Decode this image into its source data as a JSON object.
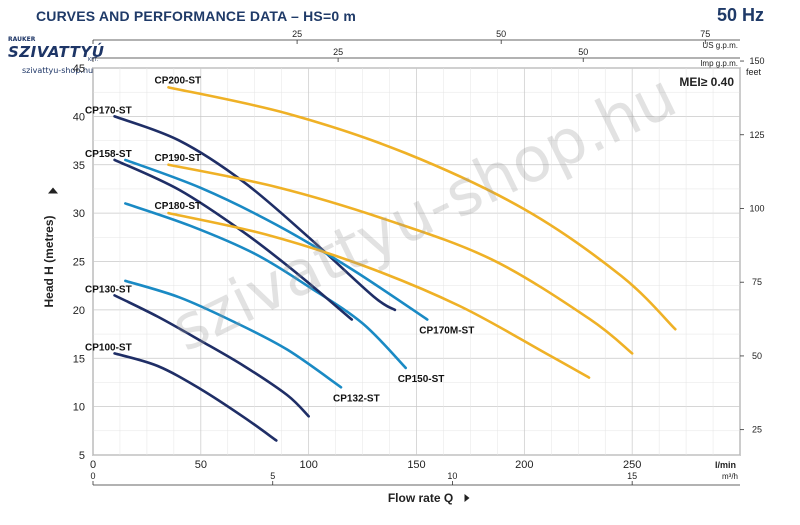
{
  "header": {
    "title": "CURVES AND PERFORMANCE DATA  –  HS=0 m",
    "frequency": "50 Hz"
  },
  "logo": {
    "top_text": "RAUKER",
    "brand": "SZIVATTYÚ",
    "suffix": "KFT.",
    "site": "szivattyu-shop.hu"
  },
  "watermark": "szivattyu-shop.hu",
  "chart_data": {
    "type": "line",
    "title": "CURVES AND PERFORMANCE DATA  –  HS=0 m",
    "xlabel": "Flow rate Q",
    "ylabel": "Head H (metres)",
    "x_unit": "l/min",
    "x_unit_secondary": "m³/h",
    "y_unit_right": "feet",
    "top_axis_us": "US g.p.m.",
    "top_axis_imp": "Imp g.p.m.",
    "mei_label": "MEI≥ 0.40",
    "xlim": [
      0,
      300
    ],
    "ylim": [
      5,
      45
    ],
    "x_ticks_lmin": [
      0,
      50,
      100,
      150,
      200,
      250
    ],
    "x_ticks_m3h": [
      0,
      5,
      10,
      15
    ],
    "y_ticks": [
      5,
      10,
      15,
      20,
      25,
      30,
      35,
      40,
      45
    ],
    "feet_ticks": [
      25,
      50,
      75,
      100,
      125,
      150
    ],
    "us_gpm_ticks": [
      0,
      25,
      50,
      75
    ],
    "imp_gpm_ticks": [
      0,
      25,
      50
    ],
    "grid": true,
    "series": [
      {
        "name": "CP100-ST",
        "color": "#1f2e66",
        "label_pos": "left",
        "x": [
          10,
          30,
          50,
          70,
          85
        ],
        "y": [
          15.5,
          14.2,
          11.8,
          8.9,
          6.5
        ]
      },
      {
        "name": "CP130-ST",
        "color": "#1f2e66",
        "label_pos": "left",
        "x": [
          10,
          30,
          50,
          70,
          90,
          100
        ],
        "y": [
          21.5,
          19.3,
          16.8,
          14.2,
          11.2,
          9
        ]
      },
      {
        "name": "CP132-ST",
        "color": "#1a8ac4",
        "label_pos": "end",
        "x": [
          15,
          40,
          65,
          90,
          115
        ],
        "y": [
          23,
          21.3,
          18.8,
          15.9,
          12
        ]
      },
      {
        "name": "CP150-ST",
        "color": "#1a8ac4",
        "label_pos": "end",
        "x": [
          15,
          45,
          75,
          100,
          125,
          145
        ],
        "y": [
          31,
          28.7,
          25.8,
          22.4,
          18.6,
          14
        ]
      },
      {
        "name": "CP158-ST",
        "color": "#1f2e66",
        "label_pos": "left",
        "x": [
          10,
          40,
          70,
          95,
          120
        ],
        "y": [
          35.5,
          32.4,
          28,
          23.7,
          19
        ]
      },
      {
        "name": "CP170-ST",
        "color": "#1f2e66",
        "label_pos": "left",
        "x": [
          10,
          40,
          70,
          100,
          130,
          140
        ],
        "y": [
          40,
          37.5,
          33.2,
          27.5,
          21.4,
          20
        ]
      },
      {
        "name": "CP170M-ST",
        "color": "#1a8ac4",
        "label_pos": "end",
        "x": [
          15,
          50,
          85,
          120,
          155
        ],
        "y": [
          35.5,
          32.6,
          28.8,
          24.2,
          19
        ]
      },
      {
        "name": "CP180-ST",
        "color": "#efb126",
        "label_pos": "start",
        "x": [
          35,
          80,
          125,
          170,
          210,
          230
        ],
        "y": [
          30,
          27.8,
          24.6,
          20.4,
          15.5,
          13
        ]
      },
      {
        "name": "CP190-ST",
        "color": "#efb126",
        "label_pos": "start",
        "x": [
          35,
          85,
          135,
          185,
          230,
          250
        ],
        "y": [
          35,
          32.7,
          29.4,
          25.2,
          19.1,
          15.5
        ]
      },
      {
        "name": "CP200-ST",
        "color": "#efb126",
        "label_pos": "start",
        "x": [
          35,
          90,
          145,
          200,
          245,
          270
        ],
        "y": [
          43,
          40.3,
          36.2,
          30.4,
          23.5,
          18
        ]
      }
    ]
  }
}
